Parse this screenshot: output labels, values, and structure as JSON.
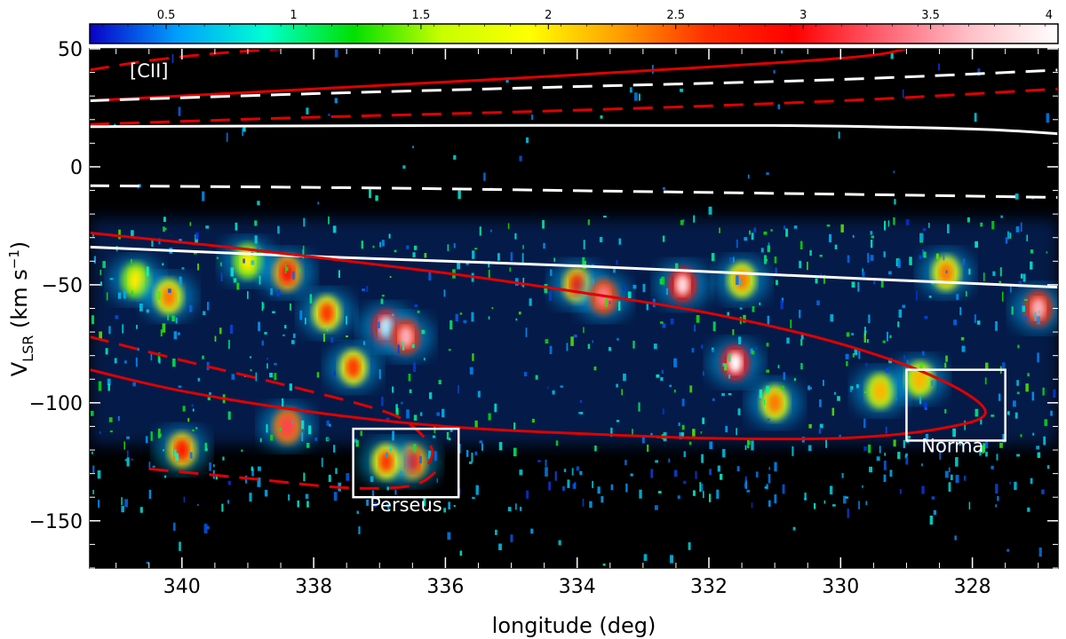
{
  "chart_data": {
    "type": "heatmap",
    "title": "",
    "xlabel": "longitude (deg)",
    "ylabel_main": "V",
    "ylabel_sub": "LSR",
    "ylabel_units_open": " (km s",
    "ylabel_units_sup": "−1",
    "ylabel_units_close": ")",
    "xlim": [
      341.4,
      326.7
    ],
    "ylim": [
      -170,
      50
    ],
    "x_ticks": [
      340,
      338,
      336,
      334,
      332,
      330,
      328
    ],
    "x_tick_labels": [
      "340",
      "338",
      "336",
      "334",
      "332",
      "330",
      "328"
    ],
    "y_ticks": [
      50,
      0,
      -50,
      -100,
      -150
    ],
    "y_tick_labels": [
      "50",
      "0",
      "−50",
      "−100",
      "−150"
    ],
    "colorbar": {
      "range": [
        0.2,
        4
      ],
      "ticks": [
        0.5,
        1,
        1.5,
        2,
        2.5,
        3,
        3.5,
        4
      ],
      "tick_labels": [
        "0.5",
        "1",
        "1.5",
        "2",
        "2.5",
        "3",
        "3.5",
        "4"
      ],
      "colormap": [
        "#0a00c8",
        "#00a0ff",
        "#00ffd0",
        "#00e000",
        "#c8ff00",
        "#ffff00",
        "#ffa000",
        "#ff3000",
        "#ff0000",
        "#ff6070",
        "#ffc0c8",
        "#ffffff"
      ]
    },
    "emission_clumps": [
      {
        "l": 340.7,
        "v": -48,
        "intensity": 2.0
      },
      {
        "l": 340.2,
        "v": -55,
        "intensity": 2.4
      },
      {
        "l": 340.0,
        "v": -120,
        "intensity": 2.8
      },
      {
        "l": 339.0,
        "v": -40,
        "intensity": 2.0
      },
      {
        "l": 338.4,
        "v": -45,
        "intensity": 3.0
      },
      {
        "l": 338.4,
        "v": -110,
        "intensity": 3.2
      },
      {
        "l": 337.8,
        "v": -62,
        "intensity": 2.6
      },
      {
        "l": 337.4,
        "v": -85,
        "intensity": 2.6
      },
      {
        "l": 336.9,
        "v": -68,
        "intensity": 4.0
      },
      {
        "l": 336.6,
        "v": -72,
        "intensity": 3.6
      },
      {
        "l": 336.5,
        "v": -125,
        "intensity": 3.0
      },
      {
        "l": 336.9,
        "v": -125,
        "intensity": 2.6
      },
      {
        "l": 334.0,
        "v": -50,
        "intensity": 2.8
      },
      {
        "l": 333.6,
        "v": -55,
        "intensity": 3.4
      },
      {
        "l": 332.4,
        "v": -50,
        "intensity": 3.8
      },
      {
        "l": 331.6,
        "v": -83,
        "intensity": 4.0
      },
      {
        "l": 331.5,
        "v": -48,
        "intensity": 2.4
      },
      {
        "l": 331.0,
        "v": -100,
        "intensity": 2.4
      },
      {
        "l": 329.4,
        "v": -95,
        "intensity": 2.2
      },
      {
        "l": 328.8,
        "v": -90,
        "intensity": 2.2
      },
      {
        "l": 328.4,
        "v": -45,
        "intensity": 2.4
      },
      {
        "l": 327.0,
        "v": -60,
        "intensity": 3.6
      }
    ],
    "curves": [
      {
        "color": "#e00000",
        "style": "dashed",
        "points": [
          [
            341.4,
            41
          ],
          [
            340.5,
            45
          ],
          [
            339.5,
            48
          ],
          [
            338.5,
            50
          ]
        ]
      },
      {
        "color": "#e00000",
        "style": "solid",
        "points": [
          [
            341.4,
            28
          ],
          [
            338.0,
            33
          ],
          [
            334.0,
            39
          ],
          [
            330.0,
            46
          ],
          [
            329.0,
            50
          ]
        ]
      },
      {
        "color": "#ffffff",
        "style": "dashed",
        "points": [
          [
            341.4,
            28
          ],
          [
            338.0,
            31
          ],
          [
            334.0,
            34
          ],
          [
            330.0,
            37
          ],
          [
            326.7,
            41
          ]
        ]
      },
      {
        "color": "#e00000",
        "style": "dashed",
        "points": [
          [
            341.4,
            18
          ],
          [
            338.0,
            21
          ],
          [
            334.0,
            24
          ],
          [
            330.0,
            28
          ],
          [
            326.7,
            33
          ]
        ]
      },
      {
        "color": "#ffffff",
        "style": "solid",
        "points": [
          [
            341.4,
            17
          ],
          [
            336.0,
            17.5
          ],
          [
            331.0,
            17.5
          ],
          [
            328.0,
            16
          ],
          [
            326.7,
            14
          ]
        ]
      },
      {
        "color": "#ffffff",
        "style": "dashed",
        "points": [
          [
            341.4,
            -8
          ],
          [
            337.0,
            -9
          ],
          [
            333.0,
            -10.5
          ],
          [
            329.0,
            -12
          ],
          [
            326.7,
            -13
          ]
        ]
      },
      {
        "color": "#ffffff",
        "style": "solid",
        "points": [
          [
            341.4,
            -34
          ],
          [
            338.0,
            -38
          ],
          [
            334.0,
            -42
          ],
          [
            330.0,
            -47
          ],
          [
            326.7,
            -51
          ]
        ]
      },
      {
        "color": "#e00000",
        "style": "solid",
        "points": [
          [
            341.4,
            -28
          ],
          [
            339.0,
            -35
          ],
          [
            336.0,
            -45
          ],
          [
            334.0,
            -53
          ],
          [
            332.0,
            -62
          ],
          [
            330.0,
            -75
          ],
          [
            328.5,
            -90
          ],
          [
            327.8,
            -104
          ],
          [
            328.5,
            -111
          ],
          [
            330.0,
            -115
          ],
          [
            332.0,
            -115
          ],
          [
            334.0,
            -113
          ],
          [
            336.0,
            -110
          ],
          [
            338.0,
            -104
          ],
          [
            340.0,
            -95
          ],
          [
            341.4,
            -86
          ]
        ]
      },
      {
        "color": "#e00000",
        "style": "dashed",
        "points": [
          [
            341.4,
            -72
          ],
          [
            340.0,
            -82
          ],
          [
            338.5,
            -92
          ],
          [
            337.0,
            -103
          ],
          [
            336.5,
            -110
          ],
          [
            336.2,
            -120
          ],
          [
            336.3,
            -128
          ]
        ]
      },
      {
        "color": "#e00000",
        "style": "dashed",
        "points": [
          [
            340.5,
            -128
          ],
          [
            339.0,
            -132
          ],
          [
            337.5,
            -136
          ],
          [
            336.5,
            -135
          ],
          [
            336.1,
            -128
          ]
        ]
      }
    ],
    "annotations": [
      {
        "text": "[CII]",
        "l": 340.5,
        "v": 38
      },
      {
        "text": "Perseus",
        "l": 336.6,
        "v": -146
      },
      {
        "text": "Norma",
        "l": 328.3,
        "v": -121
      }
    ],
    "boxes": [
      {
        "name": "Perseus",
        "l_range": [
          337.4,
          335.8
        ],
        "v_range": [
          -111,
          -140
        ]
      },
      {
        "name": "Norma",
        "l_range": [
          329.0,
          327.5
        ],
        "v_range": [
          -86,
          -116
        ]
      }
    ]
  }
}
